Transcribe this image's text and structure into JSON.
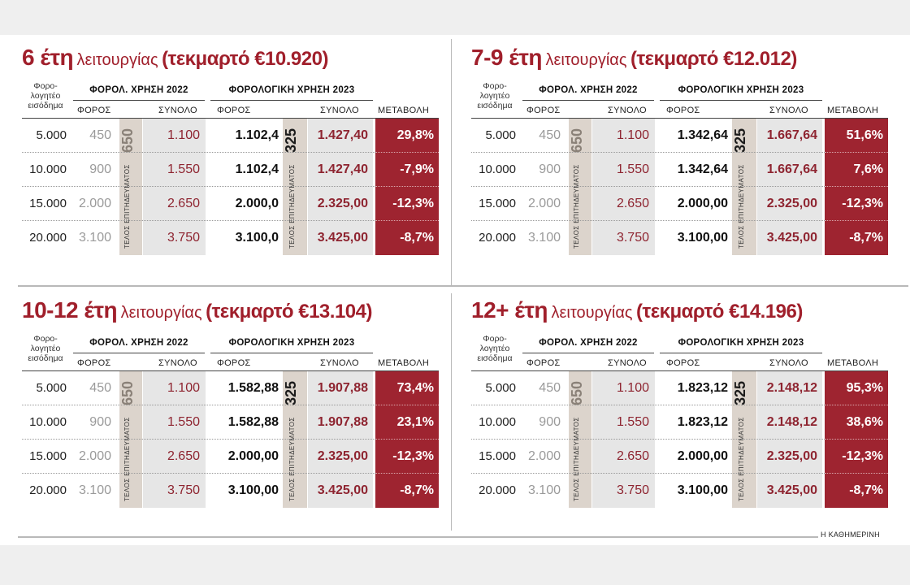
{
  "colors": {
    "accent": "#9e2430",
    "title": "#a01f2b"
  },
  "headers": {
    "income": "Φορο-\nλογητέο\nεισόδημα",
    "year2022": "ΦΟΡΟΛ. ΧΡΗΣΗ 2022",
    "year2023": "ΦΟΡΟΛΟΓΙΚΗ ΧΡΗΣΗ 2023",
    "tax": "ΦΟΡΟΣ",
    "total": "ΣΥΝΟΛΟ",
    "change": "ΜΕΤΑΒΟΛΗ",
    "fee_label": "ΤΕΛΟΣ ΕΠΙΤΗΔΕΥΜΑΤΟΣ",
    "fee2022": "650",
    "fee2023": "325"
  },
  "panels": [
    {
      "years": "6 έτη",
      "operation": "λειτουργίας",
      "presumptive": "(τεκμαρτό €10.920)",
      "rows": [
        {
          "income": "5.000",
          "tax2022": "450",
          "total2022": "1.100",
          "tax2023": "1.102,4",
          "total2023": "1.427,40",
          "change": "29,8%"
        },
        {
          "income": "10.000",
          "tax2022": "900",
          "total2022": "1.550",
          "tax2023": "1.102,4",
          "total2023": "1.427,40",
          "change": "-7,9%"
        },
        {
          "income": "15.000",
          "tax2022": "2.000",
          "total2022": "2.650",
          "tax2023": "2.000,0",
          "total2023": "2.325,00",
          "change": "-12,3%"
        },
        {
          "income": "20.000",
          "tax2022": "3.100",
          "total2022": "3.750",
          "tax2023": "3.100,0",
          "total2023": "3.425,00",
          "change": "-8,7%"
        }
      ]
    },
    {
      "years": "7-9 έτη",
      "operation": "λειτουργίας",
      "presumptive": "(τεκμαρτό €12.012)",
      "rows": [
        {
          "income": "5.000",
          "tax2022": "450",
          "total2022": "1.100",
          "tax2023": "1.342,64",
          "total2023": "1.667,64",
          "change": "51,6%"
        },
        {
          "income": "10.000",
          "tax2022": "900",
          "total2022": "1.550",
          "tax2023": "1.342,64",
          "total2023": "1.667,64",
          "change": "7,6%"
        },
        {
          "income": "15.000",
          "tax2022": "2.000",
          "total2022": "2.650",
          "tax2023": "2.000,00",
          "total2023": "2.325,00",
          "change": "-12,3%"
        },
        {
          "income": "20.000",
          "tax2022": "3.100",
          "total2022": "3.750",
          "tax2023": "3.100,00",
          "total2023": "3.425,00",
          "change": "-8,7%"
        }
      ]
    },
    {
      "years": "10-12 έτη",
      "operation": "λειτουργίας",
      "presumptive": "(τεκμαρτό €13.104)",
      "rows": [
        {
          "income": "5.000",
          "tax2022": "450",
          "total2022": "1.100",
          "tax2023": "1.582,88",
          "total2023": "1.907,88",
          "change": "73,4%"
        },
        {
          "income": "10.000",
          "tax2022": "900",
          "total2022": "1.550",
          "tax2023": "1.582,88",
          "total2023": "1.907,88",
          "change": "23,1%"
        },
        {
          "income": "15.000",
          "tax2022": "2.000",
          "total2022": "2.650",
          "tax2023": "2.000,00",
          "total2023": "2.325,00",
          "change": "-12,3%"
        },
        {
          "income": "20.000",
          "tax2022": "3.100",
          "total2022": "3.750",
          "tax2023": "3.100,00",
          "total2023": "3.425,00",
          "change": "-8,7%"
        }
      ]
    },
    {
      "years": "12+ έτη",
      "operation": "λειτουργίας",
      "presumptive": "(τεκμαρτό €14.196)",
      "rows": [
        {
          "income": "5.000",
          "tax2022": "450",
          "total2022": "1.100",
          "tax2023": "1.823,12",
          "total2023": "2.148,12",
          "change": "95,3%"
        },
        {
          "income": "10.000",
          "tax2022": "900",
          "total2022": "1.550",
          "tax2023": "1.823,12",
          "total2023": "2.148,12",
          "change": "38,6%"
        },
        {
          "income": "15.000",
          "tax2022": "2.000",
          "total2022": "2.650",
          "tax2023": "2.000,00",
          "total2023": "2.325,00",
          "change": "-12,3%"
        },
        {
          "income": "20.000",
          "tax2022": "3.100",
          "total2022": "3.750",
          "tax2023": "3.100,00",
          "total2023": "3.425,00",
          "change": "-8,7%"
        }
      ]
    }
  ],
  "source": "Η ΚΑΘΗΜΕΡΙΝΗ"
}
